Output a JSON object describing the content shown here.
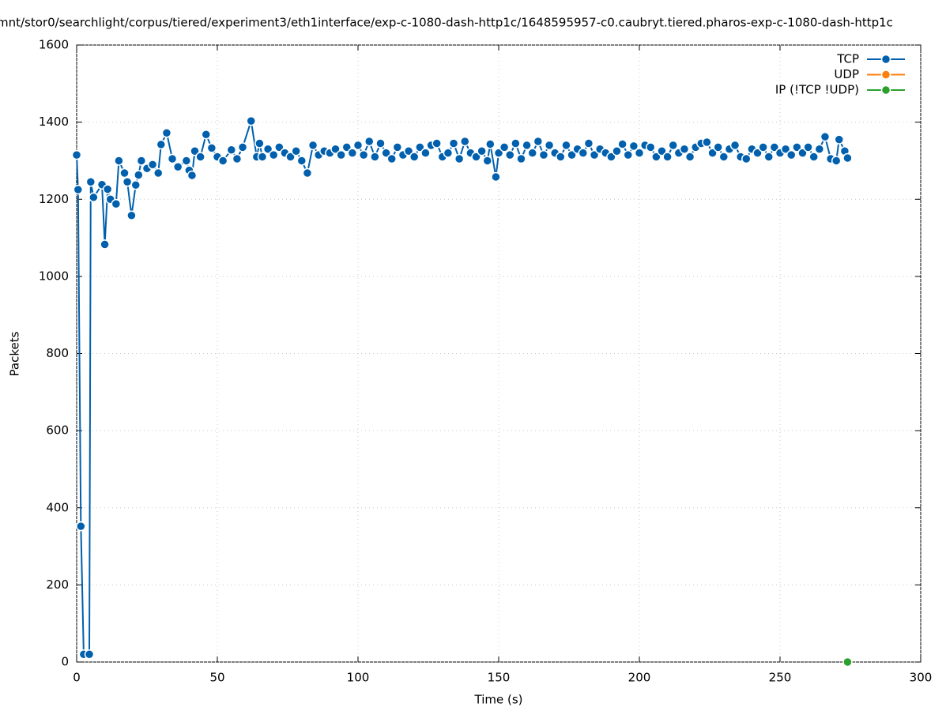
{
  "chart_data": {
    "type": "line",
    "title": "mnt/stor0/searchlight/corpus/tiered/experiment3/eth1interface/exp-c-1080-dash-http1c/1648595957-c0.caubryt.tiered.pharos-exp-c-1080-dash-http1c",
    "x_label": "Time (s)",
    "y_label": "Packets",
    "xlim": [
      0,
      300
    ],
    "xticks": [
      0,
      50,
      100,
      150,
      200,
      250,
      300
    ],
    "ylim": [
      0,
      1600
    ],
    "yticks": [
      0,
      200,
      400,
      600,
      800,
      1000,
      1200,
      1400,
      1600
    ],
    "grid": true,
    "legend": "top-right",
    "series": [
      {
        "name": "TCP",
        "color": "#0060ad",
        "x": [
          0,
          0.5,
          1.5,
          2.5,
          4.5,
          5,
          6,
          9,
          10,
          11,
          12,
          14,
          15,
          17,
          18,
          19.5,
          21,
          22,
          23,
          25,
          27,
          29,
          30,
          32,
          34,
          36,
          39,
          40,
          41,
          42,
          44,
          46,
          48,
          50,
          52,
          55,
          57,
          59,
          62,
          64,
          65,
          66,
          68,
          70,
          72,
          74,
          76,
          78,
          80,
          82,
          84,
          86,
          88,
          90,
          92,
          94,
          96,
          98,
          100,
          102,
          104,
          106,
          108,
          110,
          112,
          114,
          116,
          118,
          120,
          122,
          124,
          126,
          128,
          130,
          132,
          134,
          136,
          138,
          140,
          142,
          144,
          146,
          147,
          149,
          150,
          152,
          154,
          156,
          158,
          160,
          162,
          164,
          166,
          168,
          170,
          172,
          174,
          176,
          178,
          180,
          182,
          184,
          186,
          188,
          190,
          192,
          194,
          196,
          198,
          200,
          202,
          204,
          206,
          208,
          210,
          212,
          214,
          216,
          218,
          220,
          222,
          224,
          226,
          228,
          230,
          232,
          234,
          236,
          238,
          240,
          242,
          244,
          246,
          248,
          250,
          252,
          254,
          256,
          258,
          260,
          262,
          264,
          266,
          268,
          270,
          271,
          273,
          274
        ],
        "values": [
          1315,
          1225,
          352,
          20,
          20,
          1245,
          1205,
          1238,
          1083,
          1226,
          1200,
          1188,
          1300,
          1268,
          1245,
          1158,
          1237,
          1263,
          1300,
          1280,
          1290,
          1268,
          1342,
          1372,
          1305,
          1284,
          1300,
          1275,
          1262,
          1325,
          1310,
          1368,
          1333,
          1310,
          1300,
          1328,
          1305,
          1335,
          1403,
          1310,
          1345,
          1310,
          1330,
          1315,
          1335,
          1320,
          1310,
          1325,
          1300,
          1268,
          1340,
          1315,
          1325,
          1320,
          1330,
          1315,
          1335,
          1320,
          1340,
          1315,
          1350,
          1310,
          1345,
          1320,
          1305,
          1335,
          1315,
          1325,
          1310,
          1335,
          1320,
          1340,
          1345,
          1310,
          1320,
          1345,
          1305,
          1350,
          1320,
          1310,
          1325,
          1300,
          1343,
          1258,
          1320,
          1335,
          1315,
          1345,
          1305,
          1340,
          1320,
          1350,
          1315,
          1340,
          1320,
          1310,
          1340,
          1315,
          1330,
          1320,
          1345,
          1315,
          1330,
          1320,
          1310,
          1325,
          1343,
          1315,
          1338,
          1320,
          1340,
          1335,
          1310,
          1325,
          1310,
          1340,
          1320,
          1330,
          1310,
          1335,
          1345,
          1348,
          1320,
          1335,
          1310,
          1330,
          1340,
          1310,
          1305,
          1330,
          1320,
          1335,
          1310,
          1335,
          1320,
          1330,
          1315,
          1335,
          1320,
          1335,
          1310,
          1330,
          1362,
          1305,
          1300,
          1355,
          1325,
          1307
        ]
      },
      {
        "name": "UDP",
        "color": "#ff7f0e",
        "x": [],
        "values": []
      },
      {
        "name": "IP (!TCP  !UDP)",
        "color": "#2ca02c",
        "x": [
          274
        ],
        "values": [
          0
        ]
      }
    ]
  }
}
